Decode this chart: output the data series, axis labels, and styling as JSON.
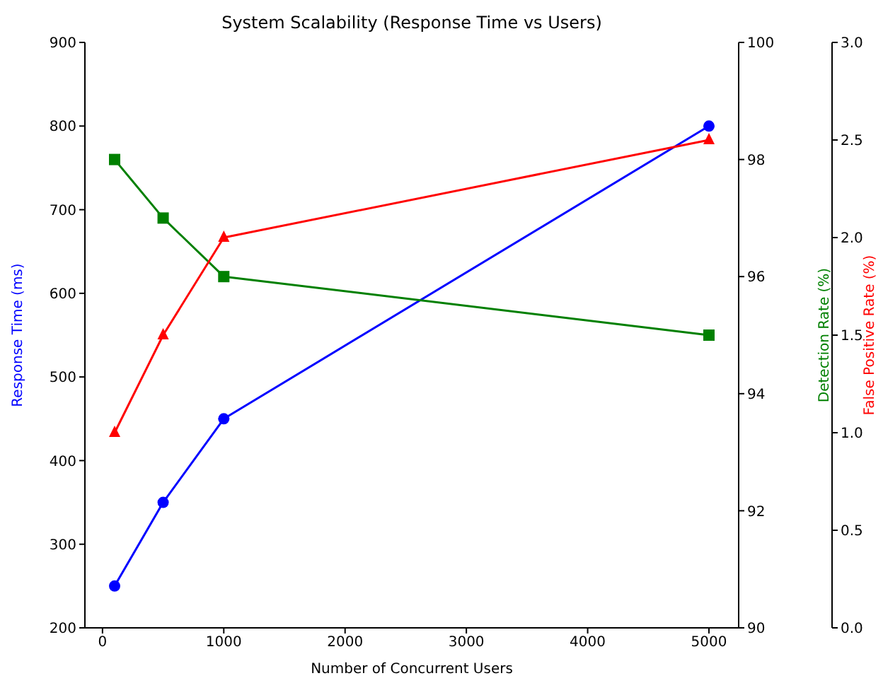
{
  "chart_data": {
    "type": "line",
    "title": "System Scalability (Response Time vs Users)",
    "xlabel": "Number of Concurrent Users",
    "ylabel": "Response Time (ms)",
    "y2label": "Detection Rate (%)",
    "y3label": "False Positive Rate (%)",
    "x": [
      100,
      500,
      1000,
      5000
    ],
    "series": [
      {
        "color": "#0000ff",
        "marker": "circle",
        "values": [
          250,
          350,
          450,
          800
        ]
      },
      {
        "color": "#008000",
        "marker": "square",
        "axis": "y2",
        "values": [
          98,
          97,
          96,
          95
        ]
      },
      {
        "color": "#ff0000",
        "marker": "triangle",
        "axis": "y3",
        "values": [
          1.0,
          1.5,
          2.0,
          2.5
        ]
      }
    ],
    "xlim": [
      -145,
      5245
    ],
    "xticks": [
      0,
      1000,
      2000,
      3000,
      4000,
      5000
    ],
    "ylim": [
      200,
      900
    ],
    "yticks": [
      200,
      300,
      400,
      500,
      600,
      700,
      800,
      900
    ],
    "y2lim": [
      90,
      100
    ],
    "y2ticks": [
      90,
      92,
      94,
      96,
      98,
      100
    ],
    "y3lim": [
      0,
      3
    ],
    "y3ticks": [
      {
        "value": 0,
        "label": "0.0"
      },
      0.5,
      {
        "value": 1,
        "label": "1.0"
      },
      1.5,
      {
        "value": 2,
        "label": "2.0"
      },
      2.5,
      {
        "value": 3,
        "label": "3.0"
      }
    ],
    "grid": false,
    "legend": false
  }
}
